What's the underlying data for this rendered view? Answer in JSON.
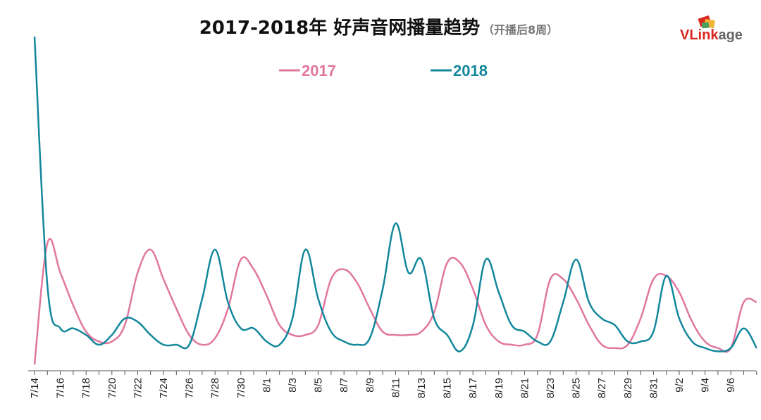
{
  "colors": {
    "series_2017": "#e0779f",
    "series_2018": "#13879b",
    "axis": "#555555",
    "logo_red": "#d9281f",
    "logo_grey": "#666666"
  },
  "logo": {
    "part1": "VLink",
    "part2": "age",
    "icon": "logo-squares-icon"
  },
  "chart_data": {
    "type": "line",
    "title": "2017-2018年 好声音网播量趋势",
    "subtitle": "（开播后8周）",
    "xlabel": "",
    "ylabel": "",
    "legend_position": "top-center",
    "grid": false,
    "y_axis_labels_shown": false,
    "x_tick_labels": [
      "7/14",
      "7/16",
      "7/18",
      "7/20",
      "7/22",
      "7/24",
      "7/26",
      "7/28",
      "7/30",
      "8/1",
      "8/3",
      "8/5",
      "8/7",
      "8/9",
      "8/11",
      "8/13",
      "8/15",
      "8/17",
      "8/19",
      "8/21",
      "8/23",
      "8/25",
      "8/27",
      "8/29",
      "8/31",
      "9/2",
      "9/4",
      "9/6"
    ],
    "x_count": 57,
    "ylim": [
      0,
      100
    ],
    "series": [
      {
        "name": "2017",
        "values": [
          0,
          37,
          28,
          18,
          10,
          7,
          7,
          12,
          28,
          35,
          26,
          17,
          9,
          6,
          8,
          17,
          32,
          29,
          21,
          12,
          9,
          9,
          12,
          26,
          29,
          25,
          17,
          10,
          9,
          9,
          10,
          16,
          31,
          31,
          23,
          12,
          7,
          6,
          6,
          9,
          26,
          26,
          20,
          12,
          6,
          5,
          6,
          14,
          26,
          27,
          22,
          13,
          7,
          5,
          5,
          19,
          19
        ]
      },
      {
        "name": "2018",
        "values": [
          100,
          24,
          11,
          11,
          9,
          6,
          9,
          14,
          13,
          9,
          6,
          6,
          6,
          20,
          35,
          19,
          11,
          11,
          7,
          6,
          14,
          35,
          20,
          10,
          7,
          6,
          8,
          23,
          43,
          28,
          32,
          14,
          9,
          4,
          12,
          32,
          22,
          12,
          10,
          7,
          7,
          19,
          32,
          19,
          14,
          12,
          7,
          7,
          10,
          27,
          14,
          7,
          5,
          4,
          5,
          11,
          5
        ]
      }
    ]
  }
}
